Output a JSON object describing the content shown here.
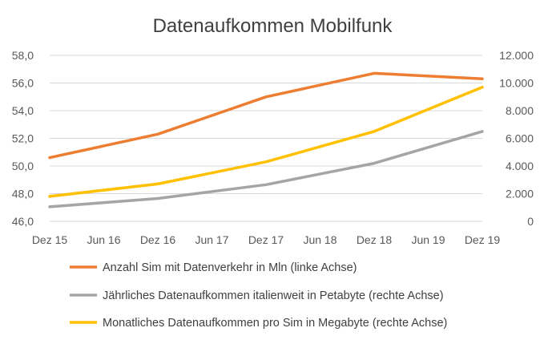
{
  "chart_data": {
    "type": "line",
    "title": "Datenaufkommen Mobilfunk",
    "categories": [
      "Dez 15",
      "Jun 16",
      "Dez 16",
      "Jun 17",
      "Dez 17",
      "Jun 18",
      "Dez 18",
      "Jun 19",
      "Dez 19"
    ],
    "y_left": {
      "ylim": [
        46.0,
        58.0
      ],
      "ticks": [
        "46,0",
        "48,0",
        "50,0",
        "52,0",
        "54,0",
        "56,0",
        "58,0"
      ]
    },
    "y_right": {
      "ylim": [
        0,
        12000
      ],
      "ticks": [
        "0",
        "2.000",
        "4.000",
        "6.000",
        "8.000",
        "10.000",
        "12.000"
      ]
    },
    "grid": true,
    "legend_position": "bottom",
    "series": [
      {
        "name": "Anzahl Sim mit Datenverkehr in Mln  (linke Achse)",
        "axis": "left",
        "color": "#ED7D31",
        "points": [
          [
            0,
            50.6
          ],
          [
            2,
            52.3
          ],
          [
            4,
            55.0
          ],
          [
            6,
            56.7
          ],
          [
            8,
            56.3
          ]
        ]
      },
      {
        "name": "Jährliches Datenaufkommen italienweit in Petabyte  (rechte Achse)",
        "axis": "right",
        "color": "#A5A5A5",
        "points": [
          [
            0,
            1050
          ],
          [
            2,
            1650
          ],
          [
            4,
            2650
          ],
          [
            6,
            4200
          ],
          [
            8,
            6500
          ]
        ]
      },
      {
        "name": "Monatliches  Datenaufkommen pro Sim in Megabyte (rechte Achse)",
        "axis": "right",
        "color": "#FFC000",
        "points": [
          [
            0,
            1800
          ],
          [
            2,
            2700
          ],
          [
            4,
            4300
          ],
          [
            6,
            6500
          ],
          [
            8,
            9700
          ]
        ]
      }
    ]
  }
}
